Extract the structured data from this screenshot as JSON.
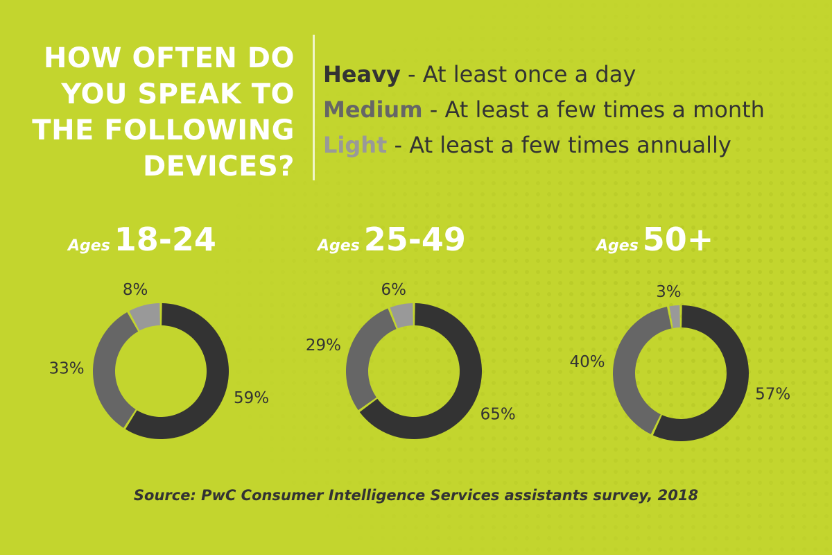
{
  "title_lines": [
    "HOW OFTEN DO",
    "YOU SPEAK TO",
    "THE FOLLOWING",
    "DEVICES?"
  ],
  "legend": [
    {
      "key": "Heavy",
      "desc": " - At least once a day",
      "color": "#333333"
    },
    {
      "key": "Medium",
      "desc": " - At least a few times a month",
      "color": "#666666"
    },
    {
      "key": "Light",
      "desc": " - At least a few times annually",
      "color": "#999999"
    }
  ],
  "colors": {
    "background": "#C3D52E",
    "heavy": "#333333",
    "medium": "#666666",
    "light": "#999999",
    "text": "#333333",
    "title": "#FFFFFF"
  },
  "source": "Source: PwC Consumer Intelligence Services assistants survey, 2018",
  "chart_data": [
    {
      "type": "pie",
      "prefix": "Ages",
      "group": "18-24",
      "categories": [
        "Heavy",
        "Medium",
        "Light"
      ],
      "values": [
        59,
        33,
        8
      ],
      "labels": [
        "59%",
        "33%",
        "8%"
      ]
    },
    {
      "type": "pie",
      "prefix": "Ages",
      "group": "25-49",
      "categories": [
        "Heavy",
        "Medium",
        "Light"
      ],
      "values": [
        65,
        29,
        6
      ],
      "labels": [
        "65%",
        "29%",
        "6%"
      ]
    },
    {
      "type": "pie",
      "prefix": "Ages",
      "group": "50+",
      "categories": [
        "Heavy",
        "Medium",
        "Light"
      ],
      "values": [
        57,
        40,
        3
      ],
      "labels": [
        "57%",
        "40%",
        "3%"
      ]
    }
  ]
}
